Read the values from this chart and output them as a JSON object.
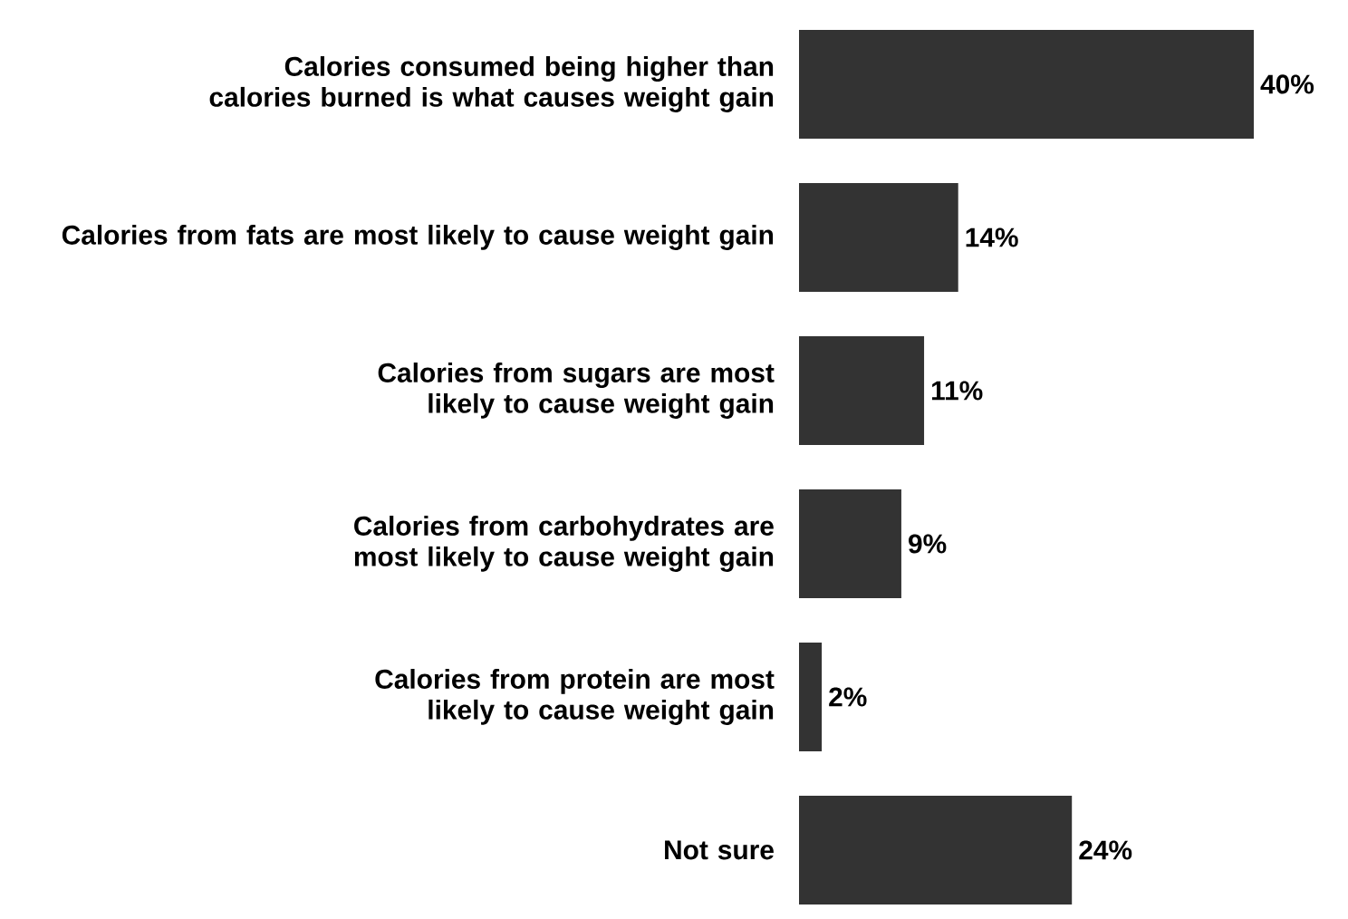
{
  "chart_data": {
    "type": "bar",
    "orientation": "horizontal",
    "categories": [
      "Calories consumed being higher than calories burned is what causes weight gain",
      "Calories from fats are most likely to cause weight gain",
      "Calories from sugars are most likely to cause weight gain",
      "Calories from carbohydrates are most likely to cause weight gain",
      "Calories from protein are most likely to cause weight gain",
      "Not sure"
    ],
    "values": [
      40,
      14,
      11,
      9,
      2,
      24
    ],
    "value_labels": [
      "40%",
      "14%",
      "11%",
      "9%",
      "2%",
      "24%"
    ],
    "color": "#333333"
  }
}
